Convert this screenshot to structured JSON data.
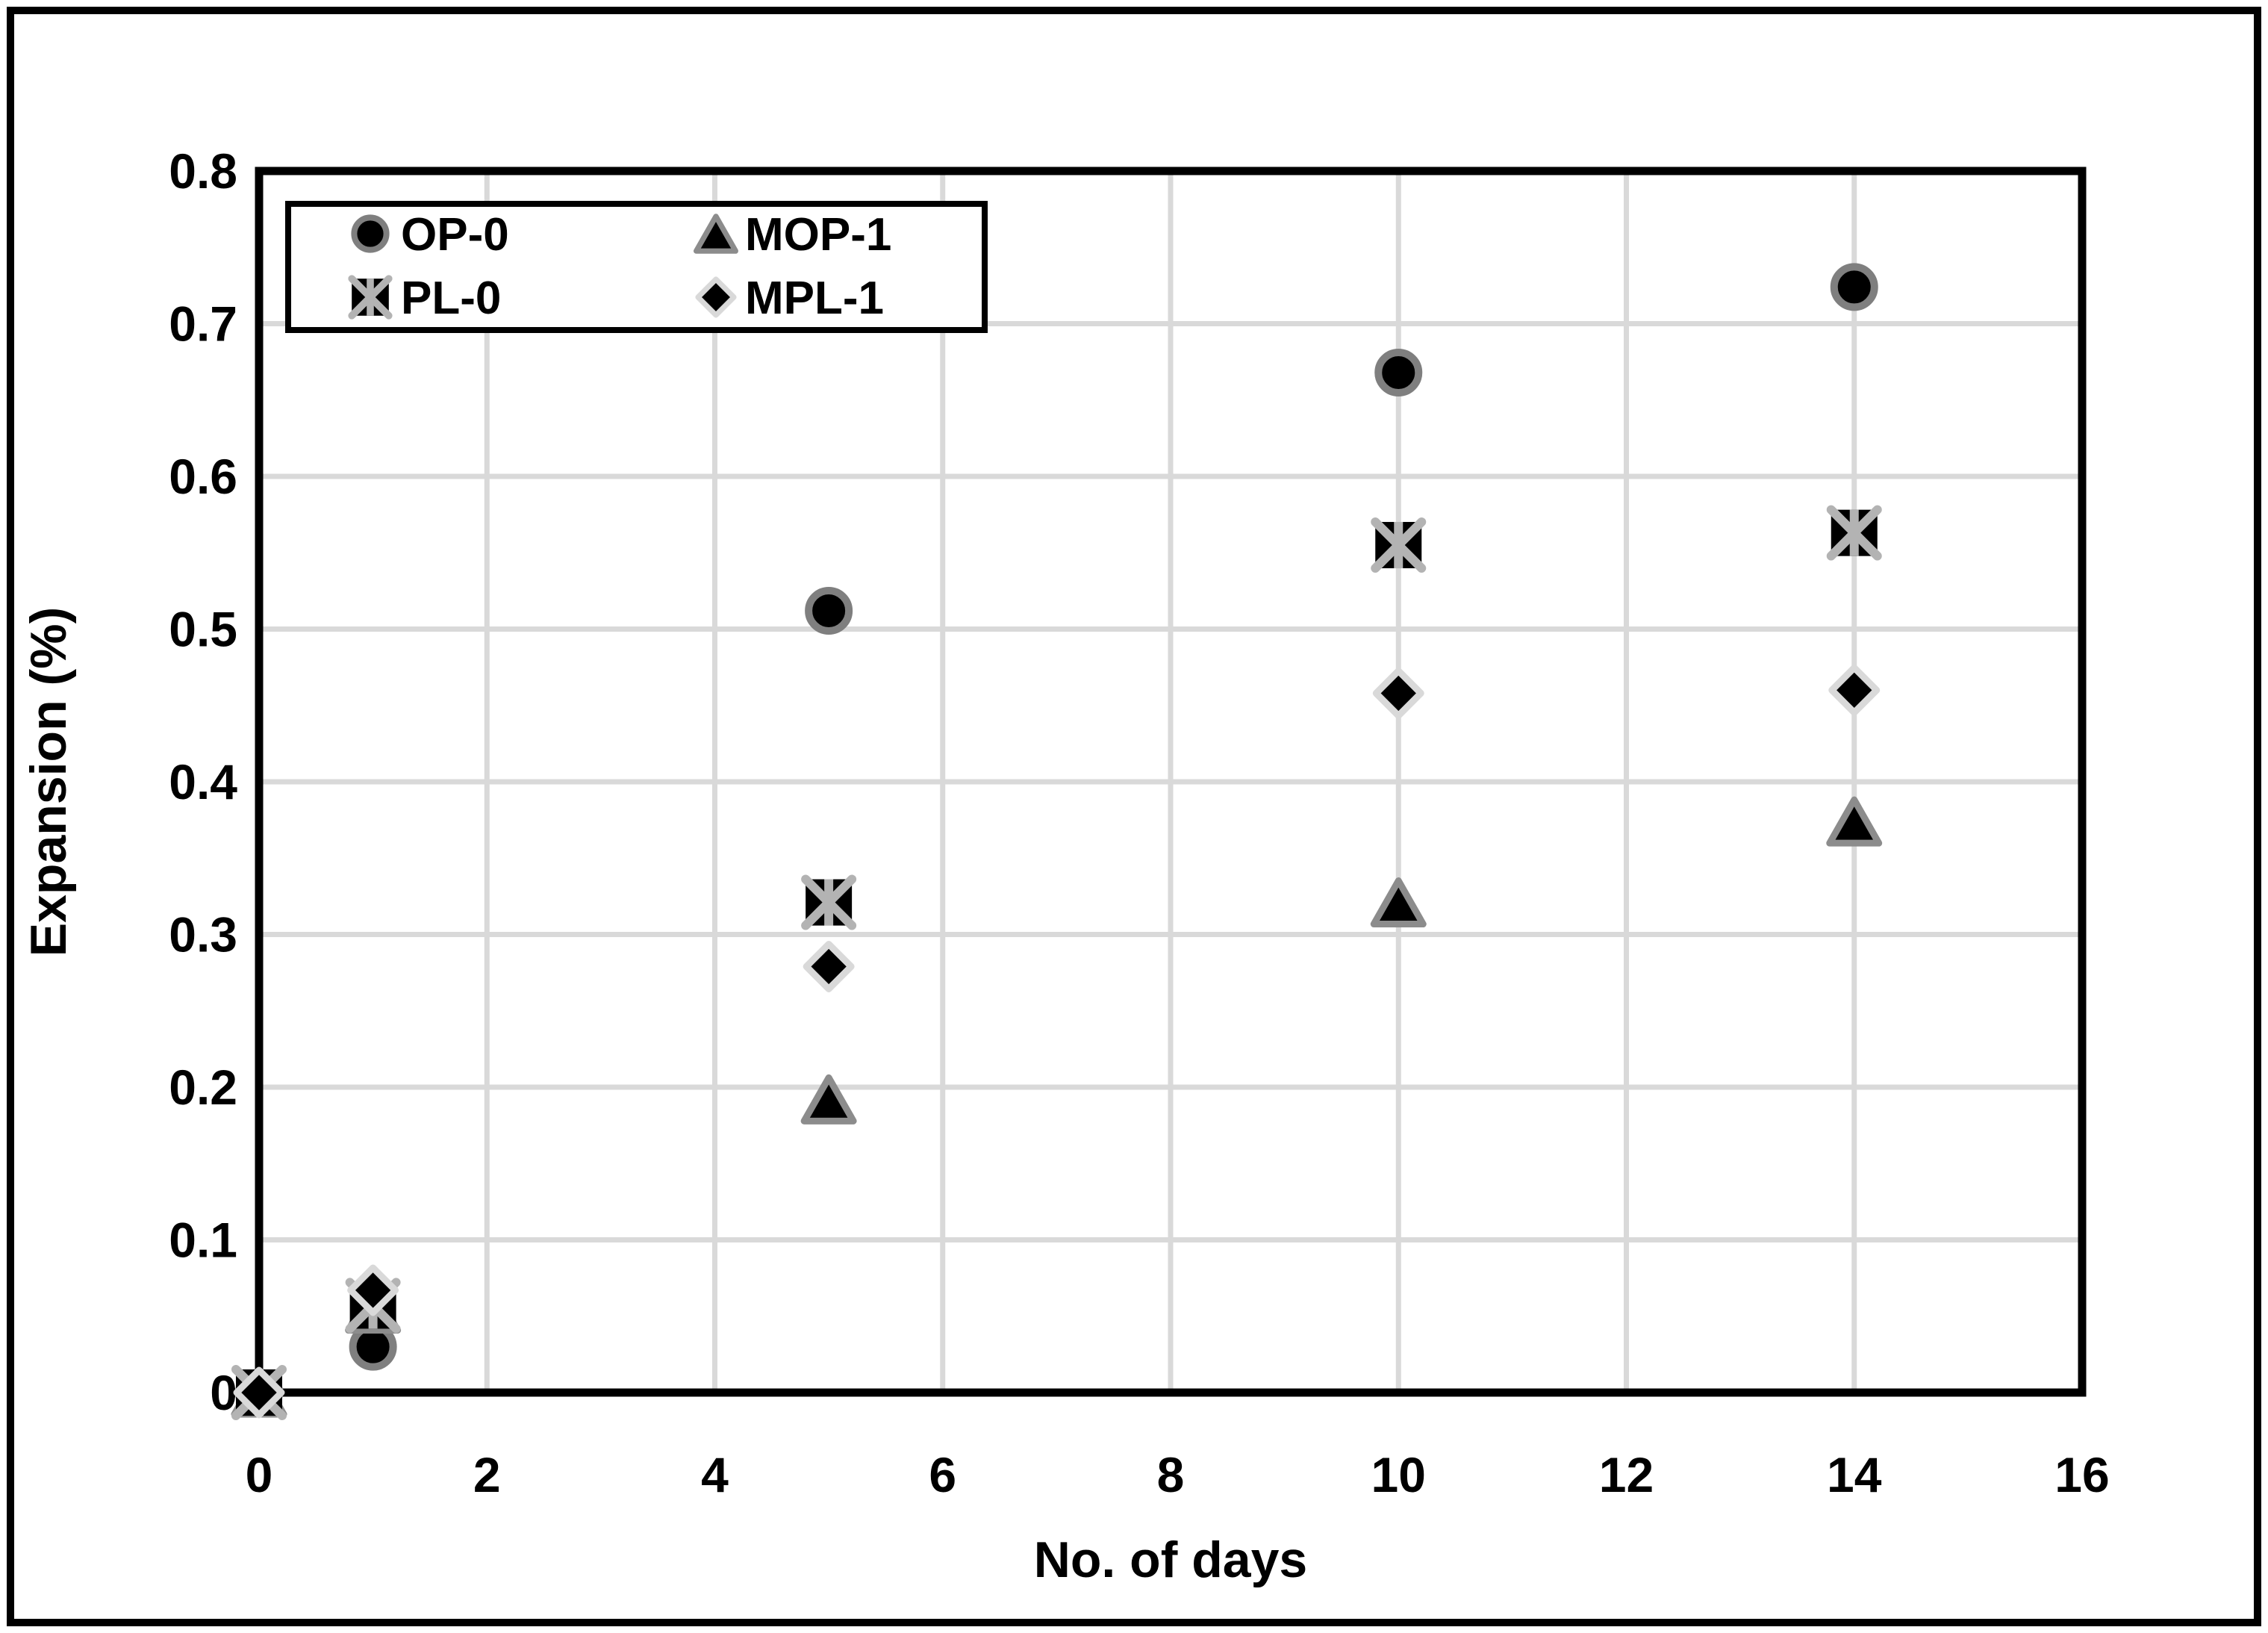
{
  "figure": {
    "background": "#ffffff",
    "outer_border_color": "#000000"
  },
  "chart_data": {
    "type": "scatter",
    "title": "",
    "xlabel": "No. of days",
    "ylabel": "Expansion (%)",
    "xlim": [
      0,
      16
    ],
    "ylim": [
      0,
      0.8
    ],
    "xticks": [
      0,
      2,
      4,
      6,
      8,
      10,
      12,
      14,
      16
    ],
    "yticks": [
      0,
      0.1,
      0.2,
      0.3,
      0.4,
      0.5,
      0.6,
      0.7,
      0.8
    ],
    "grid": true,
    "gridline_color": "#d9d9d9",
    "axis_color": "#000000",
    "legend_position": "top-left-inside",
    "legend_order": [
      "OP-0",
      "MOP-1",
      "PL-0",
      "MPL-1"
    ],
    "series": [
      {
        "name": "OP-0",
        "marker": "circle",
        "fill": "#000000",
        "stroke": "#7f7f7f",
        "x": [
          0,
          1,
          5,
          10,
          14
        ],
        "y": [
          0,
          0.03,
          0.512,
          0.668,
          0.724
        ]
      },
      {
        "name": "MOP-1",
        "marker": "triangle",
        "fill": "#000000",
        "stroke": "#8c8c8c",
        "x": [
          0,
          1,
          5,
          10,
          14
        ],
        "y": [
          0,
          0.055,
          0.192,
          0.321,
          0.374
        ]
      },
      {
        "name": "PL-0",
        "marker": "x-square",
        "fill": "#000000",
        "stroke": "#b3b3b3",
        "x": [
          0,
          1,
          5,
          10,
          14
        ],
        "y": [
          0,
          0.057,
          0.321,
          0.555,
          0.563
        ]
      },
      {
        "name": "MPL-1",
        "marker": "diamond",
        "fill": "#000000",
        "stroke": "#d9d9d9",
        "x": [
          0,
          1,
          5,
          10,
          14
        ],
        "y": [
          0,
          0.067,
          0.279,
          0.458,
          0.46
        ]
      }
    ]
  }
}
